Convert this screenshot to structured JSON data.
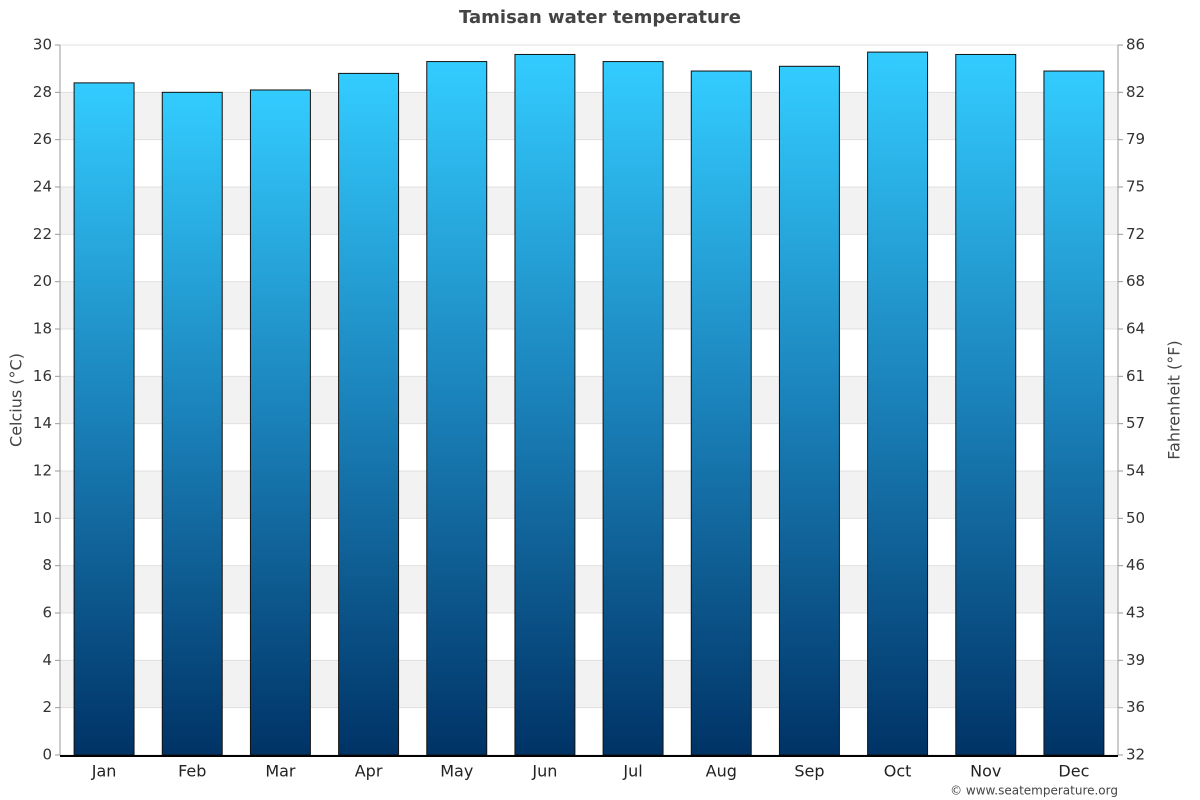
{
  "chart_data": {
    "type": "bar",
    "title": "Tamisan water temperature",
    "y_label": "Celcius (°C)",
    "y2_label": "Fahrenheit (°F)",
    "categories": [
      "Jan",
      "Feb",
      "Mar",
      "Apr",
      "May",
      "Jun",
      "Jul",
      "Aug",
      "Sep",
      "Oct",
      "Nov",
      "Dec"
    ],
    "values": [
      28.4,
      28.0,
      28.1,
      28.8,
      29.3,
      29.6,
      29.3,
      28.9,
      29.1,
      29.7,
      29.6,
      28.9
    ],
    "ylim": [
      0,
      30
    ],
    "yticks": [
      0,
      2,
      4,
      6,
      8,
      10,
      12,
      14,
      16,
      18,
      20,
      22,
      24,
      26,
      28,
      30
    ],
    "y2lim": [
      32,
      86
    ],
    "y2ticks": [
      32,
      {
        "value": 35.6,
        "label": "36"
      },
      {
        "value": 39.2,
        "label": "39"
      },
      {
        "value": 42.8,
        "label": "43"
      },
      {
        "value": 46.4,
        "label": "46"
      },
      50,
      {
        "value": 53.6,
        "label": "54"
      },
      {
        "value": 57.2,
        "label": "57"
      },
      {
        "value": 60.8,
        "label": "61"
      },
      {
        "value": 64.4,
        "label": "64"
      },
      68,
      {
        "value": 71.6,
        "label": "72"
      },
      {
        "value": 75.2,
        "label": "75"
      },
      {
        "value": 78.8,
        "label": "79"
      },
      {
        "value": 82.4,
        "label": "82"
      },
      86
    ],
    "grid": true,
    "credit": "© www.seatemperature.org"
  }
}
